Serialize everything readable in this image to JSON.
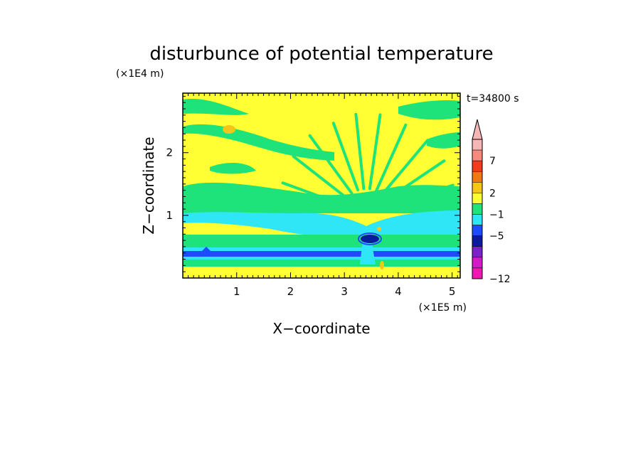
{
  "chart_data": {
    "type": "heatmap",
    "title": "disturbunce of potential temperature",
    "xlabel": "X−coordinate",
    "ylabel": "Z−coordinate",
    "x_unit": "(×1E5 m)",
    "y_unit": "(×1E4 m)",
    "time_label": "t=34800 s",
    "xlim": [
      0,
      5.15
    ],
    "ylim": [
      0,
      2.95
    ],
    "x_ticks": [
      1,
      2,
      3,
      4,
      5
    ],
    "y_ticks": [
      1,
      2
    ],
    "colorbar": {
      "tick_labels": [
        "7",
        "2",
        "−1",
        "−5",
        "−12"
      ],
      "levels": [
        {
          "color": "#f7b6b6"
        },
        {
          "color": "#f78a7c"
        },
        {
          "color": "#f23c1e"
        },
        {
          "color": "#f07a12"
        },
        {
          "color": "#f5c518"
        },
        {
          "color": "#ffff33"
        },
        {
          "color": "#1ee37a"
        },
        {
          "color": "#2ee6f6"
        },
        {
          "color": "#1f4bff"
        },
        {
          "color": "#0c1aa0"
        },
        {
          "color": "#7a22c7"
        },
        {
          "color": "#d21ac8"
        },
        {
          "color": "#f018b2"
        }
      ]
    },
    "field_layers": [
      {
        "name": "background",
        "color": "#ffff33"
      },
      {
        "name": "upper-green-bands",
        "color": "#1ee37a"
      },
      {
        "name": "cyan-layer",
        "color": "#2ee6f6"
      },
      {
        "name": "lower-green-layer",
        "color": "#1ee37a"
      },
      {
        "name": "blue-band",
        "color": "#1f4bff"
      },
      {
        "name": "dark-blue-core",
        "color": "#0c1aa0"
      },
      {
        "name": "orange-patches",
        "color": "#f5c518"
      }
    ]
  }
}
